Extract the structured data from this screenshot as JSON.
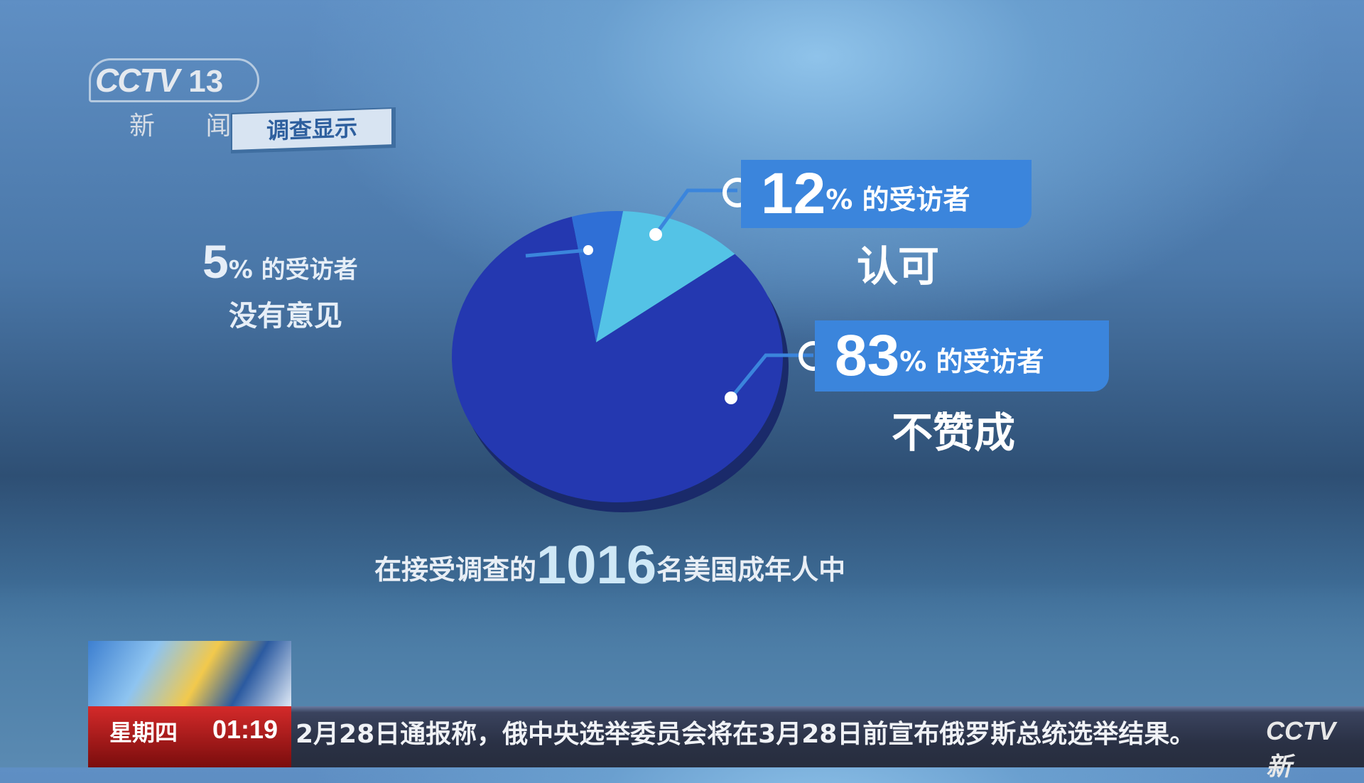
{
  "channel": {
    "logo": "CCTV",
    "number": "13",
    "name": "新 闻"
  },
  "section_tag": "调查显示",
  "chart_data": {
    "type": "pie",
    "title": "在接受调查的1016名美国成年人中",
    "slices": [
      {
        "label": "没有意见",
        "value": 5,
        "color": "#2f6fd6"
      },
      {
        "label": "认可",
        "value": 12,
        "color": "#54c3e6"
      },
      {
        "label": "不赞成",
        "value": 83,
        "color": "#2438b0"
      }
    ]
  },
  "labels": {
    "l5": {
      "value": "5",
      "suffix": "% 的受访者",
      "desc": "没有意见"
    },
    "l12": {
      "value": "12",
      "suffix": "% 的受访者",
      "desc": "认可"
    },
    "l83": {
      "value": "83",
      "suffix": "% 的受访者",
      "desc": "不赞成"
    }
  },
  "footer": {
    "pre": "在接受调查的",
    "count": "1016",
    "post": "名美国成年人中"
  },
  "lower_bar": {
    "day": "星期四",
    "time": "01:19",
    "ticker": "2月28日通报称，俄中央选举委员会将在3月28日前宣布俄罗斯总统选举结果。",
    "logo": "CCTV 新"
  }
}
